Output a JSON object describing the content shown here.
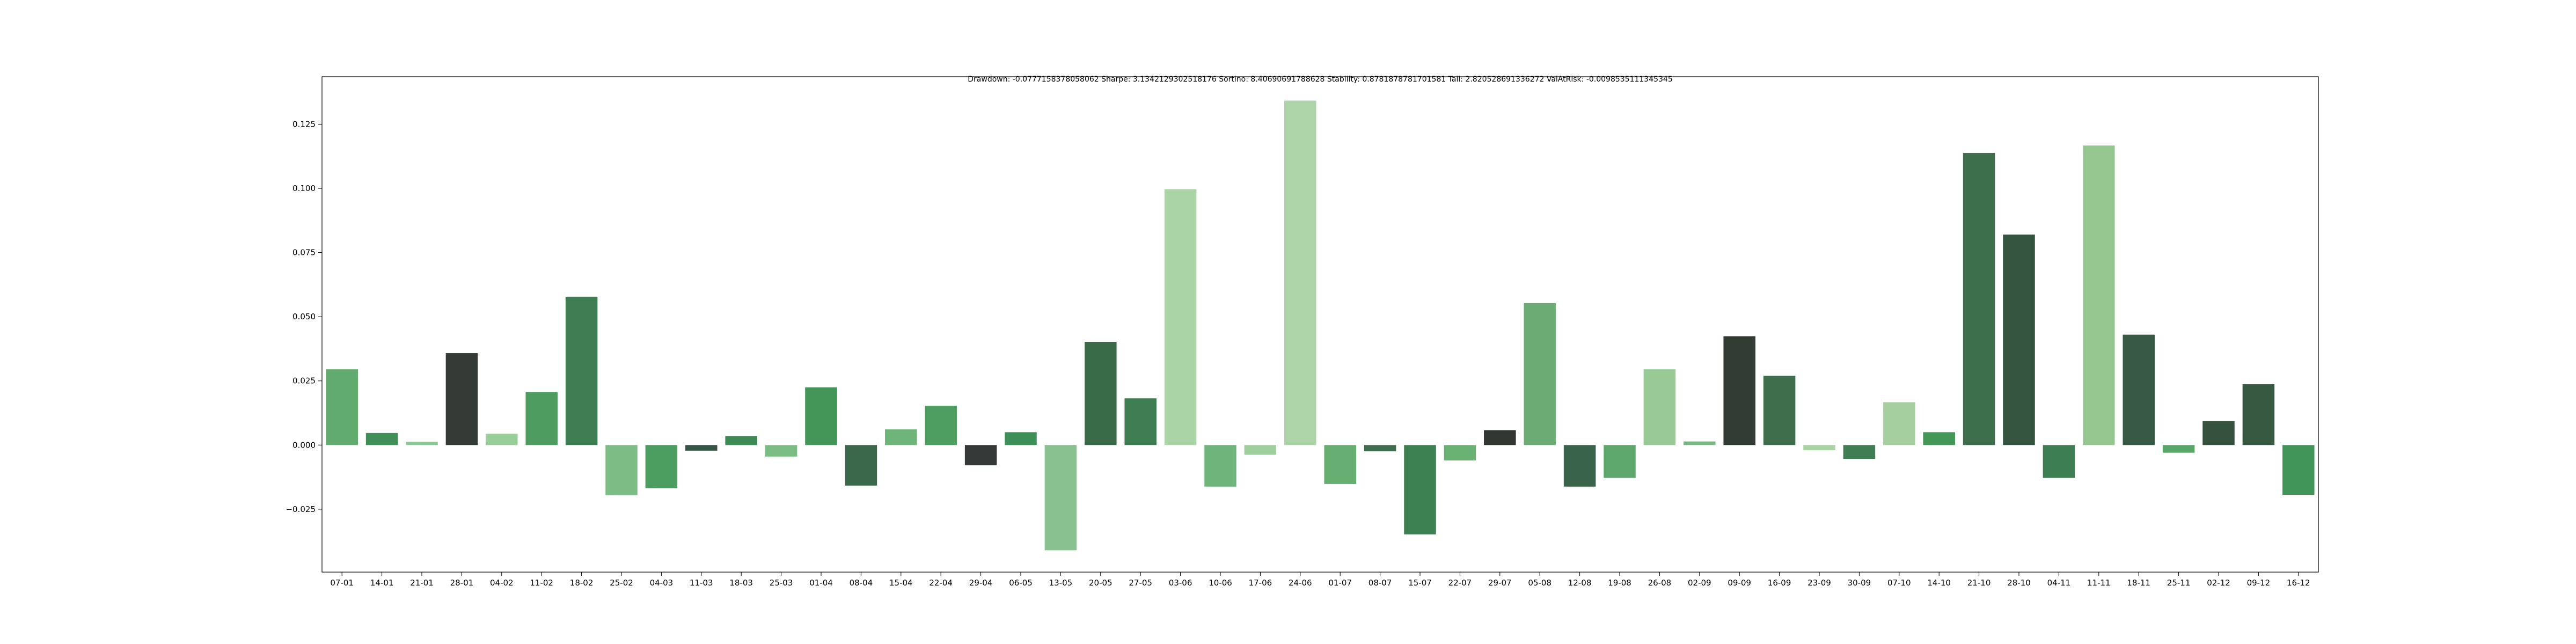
{
  "chart_data": {
    "type": "bar",
    "title": "Drawdown: -0.0777158378058062 Sharpe: 3.1342129302518176 Sortino: 8.40690691788628 Stability: 0.8781878781701581 Tail: 2.820528691336272 ValAtRisk: -0.0098535111345345",
    "xlabel": "",
    "ylabel": "",
    "ylim": [
      -0.0495,
      0.1435
    ],
    "yticks": [
      -0.025,
      0.0,
      0.025,
      0.05,
      0.075,
      0.1,
      0.125
    ],
    "ytick_labels": [
      "−0.025",
      "0.000",
      "0.025",
      "0.050",
      "0.075",
      "0.100",
      "0.125"
    ],
    "grid": false,
    "categories": [
      "07-01",
      "14-01",
      "21-01",
      "28-01",
      "04-02",
      "11-02",
      "18-02",
      "25-02",
      "04-03",
      "11-03",
      "18-03",
      "25-03",
      "01-04",
      "08-04",
      "15-04",
      "22-04",
      "29-04",
      "06-05",
      "13-05",
      "20-05",
      "27-05",
      "03-06",
      "10-06",
      "17-06",
      "24-06",
      "01-07",
      "08-07",
      "15-07",
      "22-07",
      "29-07",
      "05-08",
      "12-08",
      "19-08",
      "26-08",
      "02-09",
      "09-09",
      "16-09",
      "23-09",
      "30-09",
      "07-10",
      "14-10",
      "21-10",
      "28-10",
      "04-11",
      "11-11",
      "18-11",
      "25-11",
      "02-12",
      "09-12",
      "16-12"
    ],
    "values": [
      0.0295,
      0.0047,
      0.0013,
      0.0358,
      0.0044,
      0.0207,
      0.0578,
      -0.0195,
      -0.0168,
      -0.0022,
      0.0035,
      -0.0045,
      0.0225,
      -0.0158,
      0.0061,
      0.0153,
      -0.0079,
      0.005,
      -0.041,
      0.0402,
      0.0182,
      0.0997,
      -0.0162,
      -0.0038,
      0.1342,
      -0.0152,
      -0.0024,
      -0.0348,
      -0.006,
      0.0058,
      0.0553,
      -0.0162,
      -0.0128,
      0.0295,
      0.0014,
      0.0424,
      0.027,
      -0.002,
      -0.0054,
      0.0167,
      0.005,
      0.1138,
      0.082,
      -0.0128,
      0.1167,
      0.043,
      -0.003,
      0.0094,
      0.0237,
      -0.0194
    ],
    "colors": [
      "#60ab6d",
      "#408f58",
      "#8cc894",
      "#343b37",
      "#98ce98",
      "#4f9c61",
      "#3f7e52",
      "#7bbd84",
      "#4a9c5f",
      "#365645",
      "#3d8a55",
      "#7bbe84",
      "#449658",
      "#3a6848",
      "#6fb57a",
      "#4e9e60",
      "#343836",
      "#3d8e57",
      "#8ac190",
      "#396b49",
      "#3f7d52",
      "#aad3a6",
      "#6fb47a",
      "#9fcf9c",
      "#acd4a8",
      "#66ae71",
      "#3e6e4c",
      "#3d8152",
      "#6ab273",
      "#313731",
      "#6cac74",
      "#39634a",
      "#5ea86b",
      "#99ca96",
      "#79b783",
      "#323a34",
      "#3e6e4b",
      "#a8d4a4",
      "#3f7d52",
      "#a5cf9e",
      "#449757",
      "#3d6f4c",
      "#365541",
      "#3e7e53",
      "#96c791",
      "#375946",
      "#58a766",
      "#36513e",
      "#375941",
      "#429559"
    ]
  }
}
